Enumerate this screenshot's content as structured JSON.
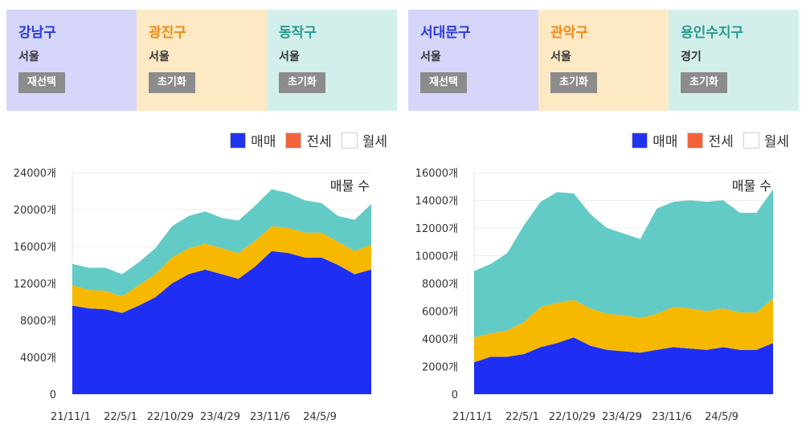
{
  "groups": [
    {
      "cards": [
        {
          "name": "강남구",
          "city": "서울",
          "button": "재선택",
          "bg": "#d5d6fa",
          "color": "#2b39d8"
        },
        {
          "name": "광진구",
          "city": "서울",
          "button": "초기화",
          "bg": "#fde9c3",
          "color": "#f08a14"
        },
        {
          "name": "동작구",
          "city": "서울",
          "button": "초기화",
          "bg": "#d2efec",
          "color": "#2a9a8c"
        }
      ]
    },
    {
      "cards": [
        {
          "name": "서대문구",
          "city": "서울",
          "button": "재선택",
          "bg": "#d5d6fa",
          "color": "#2b39d8"
        },
        {
          "name": "관악구",
          "city": "서울",
          "button": "초기화",
          "bg": "#fde9c3",
          "color": "#f08a14"
        },
        {
          "name": "용인수지구",
          "city": "경기",
          "button": "초기화",
          "bg": "#d2efec",
          "color": "#2a9a8c"
        }
      ]
    }
  ],
  "legend": [
    {
      "label": "매매",
      "color": "#2233ee"
    },
    {
      "label": "전세",
      "color": "#f4623a"
    },
    {
      "label": "월세",
      "color": "#ffffff"
    }
  ],
  "chart_data": [
    {
      "type": "area",
      "stacked": true,
      "annotation": "매물 수",
      "ylim": [
        0,
        24000
      ],
      "yticks": [
        0,
        4000,
        8000,
        12000,
        16000,
        20000,
        24000
      ],
      "ytick_labels": [
        "0",
        "4000개",
        "8000개",
        "12000개",
        "16000개",
        "20000개",
        "24000개"
      ],
      "xtick_labels": [
        "21/11/1",
        "22/5/1",
        "22/10/29",
        "23/4/29",
        "23/11/6",
        "24/5/9"
      ],
      "grid": true,
      "x": [
        "21/11/1",
        "22/1/1",
        "22/3/1",
        "22/5/1",
        "22/7/1",
        "22/9/1",
        "22/10/29",
        "23/1/1",
        "23/3/1",
        "23/4/29",
        "23/7/1",
        "23/9/1",
        "23/11/6",
        "24/1/1",
        "24/3/1",
        "24/5/9",
        "24/7/1",
        "24/9/1",
        "24/10/15"
      ],
      "series": [
        {
          "name": "매매",
          "color": "#1e2ef3",
          "values": [
            9600,
            9300,
            9200,
            8800,
            9600,
            10500,
            12000,
            13000,
            13500,
            13000,
            12500,
            13800,
            15500,
            15300,
            14800,
            14800,
            14000,
            13000,
            13500
          ]
        },
        {
          "name": "전세",
          "color": "#f7b800",
          "values": [
            2200,
            2000,
            2000,
            1800,
            2200,
            2500,
            2800,
            2800,
            2800,
            2800,
            2800,
            2800,
            2700,
            2700,
            2700,
            2700,
            2500,
            2500,
            2700
          ]
        },
        {
          "name": "월세",
          "color": "#63cbc6",
          "values": [
            2300,
            2400,
            2500,
            2400,
            2500,
            2800,
            3400,
            3500,
            3500,
            3300,
            3500,
            3800,
            4000,
            3800,
            3500,
            3200,
            2800,
            3400,
            4400
          ]
        }
      ]
    },
    {
      "type": "area",
      "stacked": true,
      "annotation": "매물 수",
      "ylim": [
        0,
        16000
      ],
      "yticks": [
        0,
        2000,
        4000,
        6000,
        8000,
        10000,
        12000,
        14000,
        16000
      ],
      "ytick_labels": [
        "0",
        "2000개",
        "4000개",
        "6000개",
        "8000개",
        "10000개",
        "12000개",
        "14000개",
        "16000개"
      ],
      "xtick_labels": [
        "21/11/1",
        "22/5/1",
        "22/10/29",
        "23/4/29",
        "23/11/6",
        "24/5/9"
      ],
      "grid": true,
      "x": [
        "21/11/1",
        "22/1/1",
        "22/3/1",
        "22/5/1",
        "22/7/1",
        "22/9/1",
        "22/10/29",
        "23/1/1",
        "23/3/1",
        "23/4/29",
        "23/7/1",
        "23/9/1",
        "23/11/6",
        "24/1/1",
        "24/3/1",
        "24/5/9",
        "24/7/1",
        "24/9/1",
        "24/10/15"
      ],
      "series": [
        {
          "name": "매매",
          "color": "#1e2ef3",
          "values": [
            2300,
            2700,
            2700,
            2900,
            3400,
            3700,
            4100,
            3500,
            3200,
            3100,
            3000,
            3200,
            3400,
            3300,
            3200,
            3400,
            3200,
            3200,
            3700
          ]
        },
        {
          "name": "전세",
          "color": "#f7b800",
          "values": [
            1800,
            1700,
            1900,
            2300,
            2900,
            2900,
            2700,
            2700,
            2600,
            2600,
            2500,
            2600,
            2900,
            2900,
            2800,
            2800,
            2700,
            2700,
            3200
          ]
        },
        {
          "name": "월세",
          "color": "#63cbc6",
          "values": [
            4800,
            5000,
            5600,
            7000,
            7600,
            8000,
            7700,
            6800,
            6200,
            5900,
            5700,
            7600,
            7600,
            7800,
            7900,
            7800,
            7200,
            7200,
            7900
          ]
        }
      ]
    }
  ]
}
